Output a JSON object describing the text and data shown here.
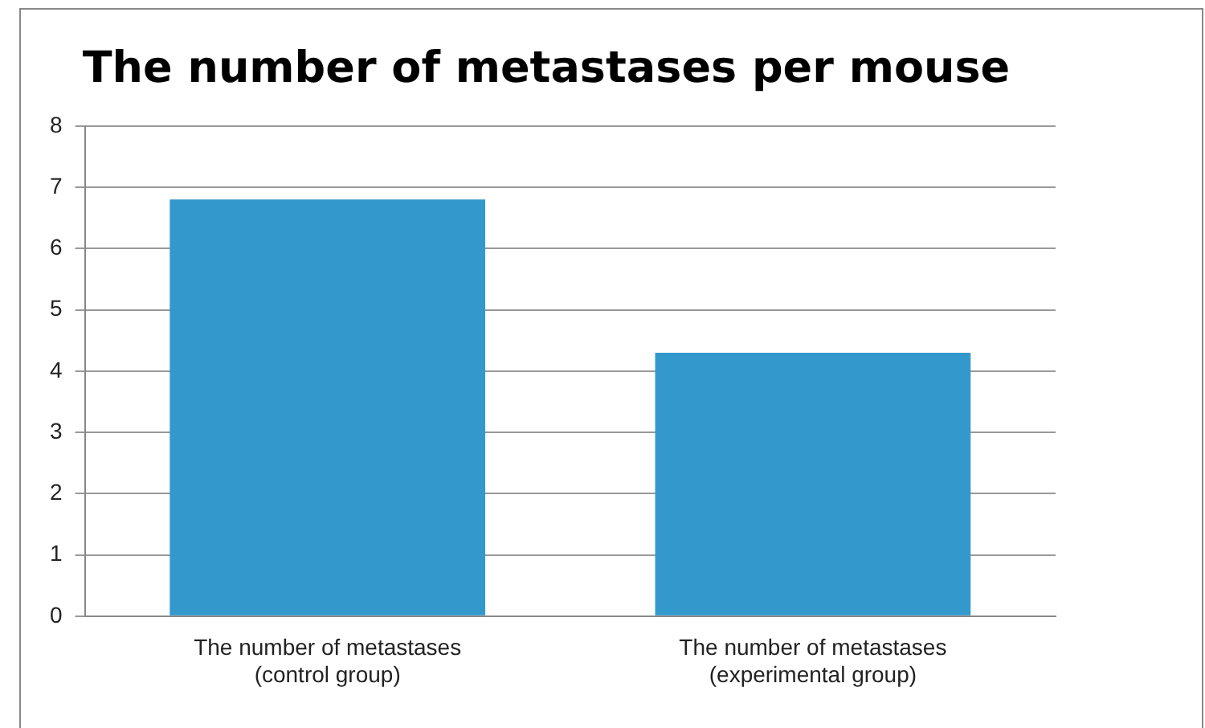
{
  "chart_data": {
    "type": "bar",
    "title": "The number of metastases per mouse",
    "categories": [
      "The number of metastases (control group)",
      "The number of metastases (experimental group)"
    ],
    "values": [
      6.8,
      4.3
    ],
    "color": "#3399cc",
    "ylim": [
      0,
      8
    ],
    "yticks": [
      0,
      1,
      2,
      3,
      4,
      5,
      6,
      7,
      8
    ],
    "grid": "y",
    "legend": false
  }
}
